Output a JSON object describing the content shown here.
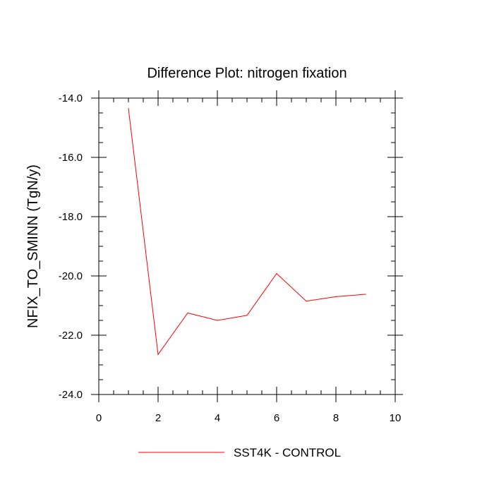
{
  "chart_data": {
    "type": "line",
    "title": "Difference Plot: nitrogen fixation",
    "xlabel": "",
    "ylabel": "NFIX_TO_SMINN  (TgN/y)",
    "xlim": [
      0,
      10
    ],
    "ylim": [
      -24.0,
      -14.0
    ],
    "x_ticks": [
      0,
      2,
      4,
      6,
      8,
      10
    ],
    "x_tick_labels": [
      "0",
      "2",
      "4",
      "6",
      "8",
      "10"
    ],
    "y_ticks": [
      -14.0,
      -16.0,
      -18.0,
      -20.0,
      -22.0,
      -24.0
    ],
    "y_tick_labels": [
      "-14.0",
      "-16.0",
      "-18.0",
      "-20.0",
      "-22.0",
      "-24.0"
    ],
    "grid": false,
    "legend_position": "bottom-center",
    "series": [
      {
        "name": "SST4K - CONTROL",
        "color": "#ff0000",
        "x": [
          1,
          2,
          3,
          4,
          5,
          6,
          7,
          8,
          9
        ],
        "values": [
          -14.35,
          -22.65,
          -21.25,
          -21.5,
          -21.33,
          -19.92,
          -20.85,
          -20.7,
          -20.62
        ]
      }
    ]
  }
}
